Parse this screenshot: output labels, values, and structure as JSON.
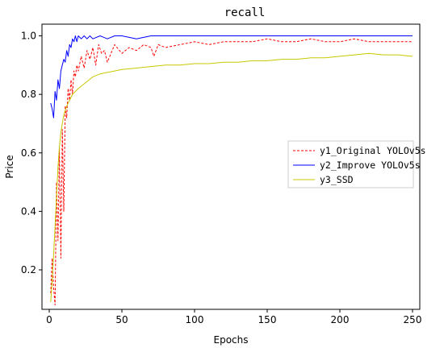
{
  "chart_data": {
    "type": "line",
    "title": "recall",
    "xlabel": "Epochs",
    "ylabel": "Price",
    "xlim": [
      -5,
      255
    ],
    "ylim": [
      0.065,
      1.04
    ],
    "xticks": [
      0,
      50,
      100,
      150,
      200,
      250
    ],
    "yticks": [
      0.2,
      0.4,
      0.6,
      0.8,
      1.0
    ],
    "xtick_labels": [
      "0",
      "50",
      "100",
      "150",
      "200",
      "250"
    ],
    "ytick_labels": [
      "0.2",
      "0.4",
      "0.6",
      "0.8",
      "1.0"
    ],
    "legend_position": "center-right",
    "grid": false,
    "series": [
      {
        "name": "y1_Original YOLOv5s",
        "color": "#ff0000",
        "style": "dashed",
        "x": [
          1,
          2,
          3,
          4,
          5,
          6,
          7,
          8,
          9,
          10,
          11,
          12,
          13,
          14,
          15,
          16,
          17,
          18,
          19,
          20,
          22,
          24,
          26,
          28,
          30,
          32,
          34,
          36,
          38,
          40,
          45,
          50,
          55,
          60,
          65,
          70,
          72,
          75,
          80,
          90,
          100,
          110,
          120,
          130,
          140,
          150,
          160,
          170,
          180,
          190,
          200,
          210,
          220,
          230,
          240,
          250
        ],
        "y": [
          0.12,
          0.24,
          0.14,
          0.08,
          0.5,
          0.3,
          0.62,
          0.24,
          0.68,
          0.4,
          0.76,
          0.72,
          0.82,
          0.78,
          0.85,
          0.8,
          0.88,
          0.86,
          0.9,
          0.88,
          0.93,
          0.89,
          0.95,
          0.92,
          0.96,
          0.9,
          0.97,
          0.94,
          0.95,
          0.91,
          0.97,
          0.94,
          0.96,
          0.95,
          0.97,
          0.96,
          0.93,
          0.97,
          0.96,
          0.97,
          0.98,
          0.97,
          0.98,
          0.98,
          0.98,
          0.99,
          0.98,
          0.98,
          0.99,
          0.98,
          0.98,
          0.99,
          0.98,
          0.98,
          0.98,
          0.98
        ]
      },
      {
        "name": "y2_Improve YOLOv5s",
        "color": "#0000ff",
        "style": "solid",
        "x": [
          1,
          2,
          3,
          4,
          5,
          6,
          7,
          8,
          9,
          10,
          11,
          12,
          13,
          14,
          15,
          16,
          17,
          18,
          19,
          20,
          22,
          24,
          26,
          28,
          30,
          35,
          40,
          45,
          50,
          60,
          70,
          80,
          90,
          100,
          120,
          140,
          160,
          180,
          200,
          220,
          240,
          250
        ],
        "y": [
          0.77,
          0.75,
          0.72,
          0.81,
          0.78,
          0.85,
          0.82,
          0.88,
          0.9,
          0.92,
          0.91,
          0.95,
          0.93,
          0.97,
          0.96,
          0.99,
          0.98,
          1.0,
          0.98,
          1.0,
          0.99,
          1.0,
          0.99,
          1.0,
          0.99,
          1.0,
          0.99,
          1.0,
          1.0,
          0.99,
          1.0,
          1.0,
          1.0,
          1.0,
          1.0,
          1.0,
          1.0,
          1.0,
          1.0,
          1.0,
          1.0,
          1.0
        ]
      },
      {
        "name": "y3_SSD",
        "color": "#c8c800",
        "style": "solid",
        "x": [
          1,
          2,
          3,
          4,
          5,
          6,
          7,
          8,
          9,
          10,
          12,
          14,
          16,
          18,
          20,
          25,
          30,
          35,
          40,
          45,
          50,
          60,
          70,
          80,
          90,
          100,
          110,
          120,
          130,
          140,
          150,
          160,
          170,
          180,
          190,
          200,
          210,
          220,
          230,
          240,
          250
        ],
        "y": [
          0.09,
          0.16,
          0.25,
          0.35,
          0.45,
          0.55,
          0.62,
          0.67,
          0.7,
          0.73,
          0.76,
          0.78,
          0.8,
          0.81,
          0.82,
          0.84,
          0.86,
          0.87,
          0.875,
          0.88,
          0.885,
          0.89,
          0.895,
          0.9,
          0.9,
          0.905,
          0.905,
          0.91,
          0.91,
          0.915,
          0.915,
          0.92,
          0.92,
          0.925,
          0.925,
          0.93,
          0.935,
          0.94,
          0.935,
          0.935,
          0.93
        ]
      }
    ]
  }
}
